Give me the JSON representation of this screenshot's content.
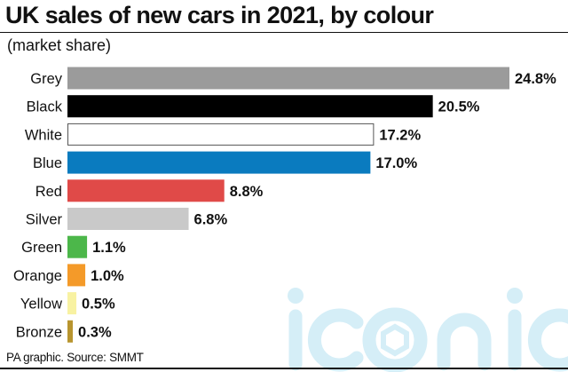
{
  "chart_data": {
    "type": "bar",
    "orientation": "horizontal",
    "title": "UK sales of new cars in 2021, by colour",
    "subtitle": "(market share)",
    "unit": "%",
    "categories": [
      "Grey",
      "Black",
      "White",
      "Blue",
      "Red",
      "Silver",
      "Green",
      "Orange",
      "Yellow",
      "Bronze"
    ],
    "values": [
      24.8,
      20.5,
      17.2,
      17.0,
      8.8,
      6.8,
      1.1,
      1.0,
      0.5,
      0.3
    ],
    "value_labels": [
      "24.8%",
      "20.5%",
      "17.2%",
      "17.0%",
      "8.8%",
      "6.8%",
      "1.1%",
      "1.0%",
      "0.5%",
      "0.3%"
    ],
    "colors": [
      "#9b9b9b",
      "#000000",
      "#ffffff",
      "#0a7bbf",
      "#e04a48",
      "#c9c9c9",
      "#4cb74a",
      "#f49a29",
      "#f8f2a2",
      "#b8952f"
    ],
    "outline_colors": [
      "",
      "",
      "#555555",
      "",
      "",
      "",
      "",
      "",
      "",
      ""
    ],
    "xlim": [
      0,
      24.8
    ],
    "grid": false,
    "legend": "none"
  },
  "footer": {
    "source": "PA graphic. Source: SMMT"
  },
  "watermark": {
    "text": "iconic",
    "color": "#d5eef7"
  }
}
